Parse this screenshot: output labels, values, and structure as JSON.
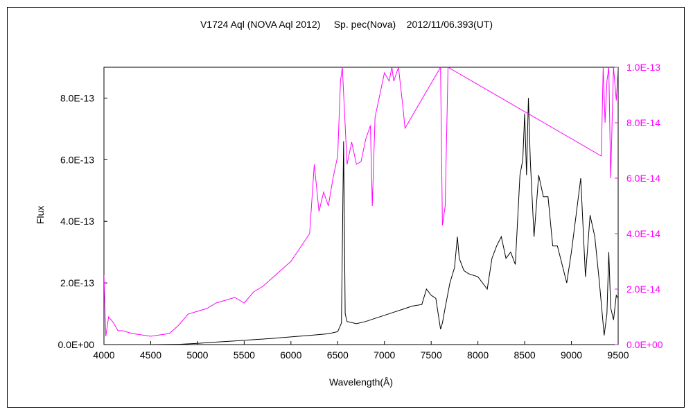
{
  "chart_data": {
    "type": "line",
    "title": "V1724 Aql (NOVA Aql 2012)     Sp. pec(Nova)    2012/11/06.393(UT)",
    "xlabel": "Wavelength(Å)",
    "ylabel": "Flux",
    "xlim": [
      4000,
      9500
    ],
    "ylim_left": [
      0,
      9e-13
    ],
    "ylim_right": [
      0,
      1e-13
    ],
    "x_ticks": [
      "4000",
      "4500",
      "5000",
      "5500",
      "6000",
      "6500",
      "7000",
      "7500",
      "8000",
      "8500",
      "9000",
      "9500"
    ],
    "y_ticks_left": [
      "0.0E+00",
      "2.0E-13",
      "4.0E-13",
      "6.0E-13",
      "8.0E-13"
    ],
    "y_ticks_right": [
      "0.0E+00",
      "2.0E-14",
      "4.0E-14",
      "6.0E-14",
      "8.0E-14",
      "1.0E-13"
    ],
    "grid": false,
    "series": [
      {
        "axis": "left",
        "color": "#000000",
        "x": [
          4000,
          4500,
          4800,
          5000,
          5200,
          5400,
          5600,
          5800,
          6000,
          6200,
          6400,
          6500,
          6540,
          6563,
          6580,
          6600,
          6700,
          6800,
          6900,
          7000,
          7100,
          7200,
          7300,
          7400,
          7450,
          7500,
          7550,
          7600,
          7620,
          7650,
          7700,
          7750,
          7780,
          7800,
          7850,
          7900,
          8000,
          8100,
          8150,
          8200,
          8250,
          8300,
          8350,
          8400,
          8450,
          8480,
          8500,
          8520,
          8540,
          8560,
          8600,
          8650,
          8700,
          8750,
          8800,
          8850,
          8900,
          8950,
          9000,
          9050,
          9100,
          9150,
          9200,
          9250,
          9300,
          9350,
          9380,
          9400,
          9420,
          9450,
          9480,
          9500
        ],
        "y": [
          0,
          0,
          1e-15,
          4e-15,
          8e-15,
          1.2e-14,
          1.6e-14,
          2e-14,
          2.5e-14,
          3e-14,
          3.5e-14,
          4.2e-14,
          7e-14,
          6.6e-13,
          1e-13,
          7.5e-14,
          6.8e-14,
          7.5e-14,
          8.5e-14,
          9.5e-14,
          1.05e-13,
          1.15e-13,
          1.25e-13,
          1.3e-13,
          1.8e-13,
          1.6e-13,
          1.5e-13,
          5e-14,
          7e-14,
          1.2e-13,
          2e-13,
          2.5e-13,
          3.5e-13,
          2.8e-13,
          2.4e-13,
          2.3e-13,
          2.2e-13,
          1.8e-13,
          2.8e-13,
          3.2e-13,
          3.5e-13,
          2.8e-13,
          3e-13,
          2.6e-13,
          5.5e-13,
          6e-13,
          7.5e-13,
          5.5e-13,
          8e-13,
          6e-13,
          3.5e-13,
          5.5e-13,
          4.8e-13,
          4.8e-13,
          3.2e-13,
          3.2e-13,
          2.6e-13,
          2e-13,
          3e-13,
          4.2e-13,
          5.4e-13,
          2.2e-13,
          4.2e-13,
          3.5e-13,
          2e-13,
          3e-14,
          1e-13,
          3e-13,
          1.2e-13,
          8e-14,
          1.6e-13,
          1.5e-13
        ]
      },
      {
        "axis": "right",
        "color": "#ff00ff",
        "x": [
          4000,
          4020,
          4050,
          4100,
          4150,
          4200,
          4300,
          4400,
          4500,
          4600,
          4700,
          4800,
          4900,
          5000,
          5100,
          5200,
          5300,
          5400,
          5500,
          5600,
          5700,
          5800,
          5900,
          6000,
          6100,
          6200,
          6250,
          6300,
          6350,
          6400,
          6450,
          6500,
          6530,
          6550,
          6600,
          6650,
          6700,
          6750,
          6800,
          6850,
          6870,
          6900,
          6950,
          7000,
          7050,
          7080,
          7100,
          7150,
          7200,
          7220,
          7600,
          7620,
          7650,
          7680,
          9320,
          9340,
          9360,
          9380,
          9400,
          9420,
          9450,
          9480,
          9500
        ],
        "y": [
          2.5e-14,
          3e-15,
          1e-14,
          8e-15,
          5e-15,
          5e-15,
          4e-15,
          3.5e-15,
          3e-15,
          3.5e-15,
          4e-15,
          7e-15,
          1.1e-14,
          1.2e-14,
          1.3e-14,
          1.5e-14,
          1.6e-14,
          1.7e-14,
          1.5e-14,
          1.9e-14,
          2.1e-14,
          2.4e-14,
          2.7e-14,
          3e-14,
          3.5e-14,
          4e-14,
          6.5e-14,
          4.8e-14,
          5.5e-14,
          5e-14,
          6e-14,
          6.8e-14,
          9.5e-14,
          1e-13,
          6.5e-14,
          7.3e-14,
          6.5e-14,
          6.6e-14,
          7.4e-14,
          7.9e-14,
          5e-14,
          8.2e-14,
          9e-14,
          9.8e-14,
          9.5e-14,
          1e-13,
          9.5e-14,
          1e-13,
          8.5e-14,
          7.8e-14,
          1e-13,
          4.3e-14,
          5e-14,
          1e-13,
          6.8e-14,
          1e-13,
          8e-14,
          9.5e-14,
          1e-13,
          6e-14,
          1e-13,
          8.8e-14,
          1e-13
        ]
      }
    ]
  }
}
